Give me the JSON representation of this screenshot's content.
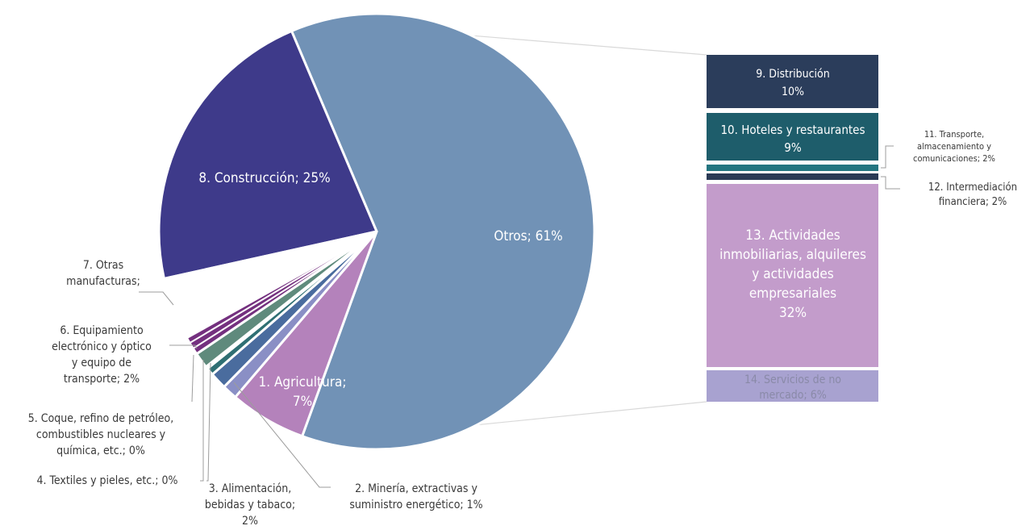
{
  "chart_data": {
    "type": "pie",
    "subtype": "pie-of-bar",
    "title": "",
    "main_slices": [
      {
        "key": "otros",
        "label_lines": [
          "Otros; 61%"
        ],
        "value": 61,
        "color": "#7192b6",
        "label_color": "#ffffff"
      },
      {
        "key": "agricultura",
        "label_lines": [
          "1. Agricultura;",
          "7%"
        ],
        "value": 7,
        "color": "#b482bb",
        "label_color": "#ffffff"
      },
      {
        "key": "mineria",
        "label_lines": [
          "2. Minería, extractivas y",
          "suministro energético; 1%"
        ],
        "value": 1,
        "color": "#8a8fc5",
        "label_color": "#3a3a3a"
      },
      {
        "key": "alimentacion",
        "label_lines": [
          "3. Alimentación,",
          "bebidas y tabaco;",
          "2%"
        ],
        "value": 2,
        "color": "#4a6c9e",
        "label_color": "#3a3a3a"
      },
      {
        "key": "textiles",
        "label_lines": [
          "4. Textiles y pieles, etc.; 0%"
        ],
        "value": 0,
        "color": "#2f6f73",
        "label_color": "#3a3a3a"
      },
      {
        "key": "coque",
        "label_lines": [
          "5. Coque, refino de petróleo,",
          "combustibles nucleares y",
          "química, etc.; 0%"
        ],
        "value": 0,
        "color": "#355e4e",
        "label_color": "#3a3a3a"
      },
      {
        "key": "equipamiento",
        "label_lines": [
          "6. Equipamiento",
          "electrónico y óptico",
          "y equipo de",
          "transporte; 2%"
        ],
        "value": 2,
        "color": "#5f8a7c",
        "label_color": "#3a3a3a"
      },
      {
        "key": "otras_manuf",
        "label_lines": [
          "7. Otras",
          "manufacturas;"
        ],
        "value": 2,
        "color": "#74307f",
        "label_color": "#3a3a3a"
      },
      {
        "key": "construccion",
        "label_lines": [
          "8. Construcción; 25%"
        ],
        "value": 25,
        "color": "#3e3a8a",
        "label_color": "#ffffff"
      }
    ],
    "bar_segments": [
      {
        "key": "distribucion",
        "label_lines": [
          "9. Distribución",
          "10%"
        ],
        "value": 10,
        "color": "#2b3d5b",
        "label_color": "#ffffff"
      },
      {
        "key": "hoteles",
        "label_lines": [
          "10. Hoteles y restaurantes",
          "9%"
        ],
        "value": 9,
        "color": "#1e5d6b",
        "label_color": "#ffffff"
      },
      {
        "key": "transporte",
        "label_lines": [
          "11. Transporte,",
          "almacenamiento y",
          "comunicaciones; 2%"
        ],
        "value": 2,
        "color": "#237580",
        "label_color": "#3a3a3a"
      },
      {
        "key": "intermediacion",
        "label_lines": [
          "12. Intermediación",
          "financiera; 2%"
        ],
        "value": 2,
        "color": "#2a3a55",
        "label_color": "#3a3a3a"
      },
      {
        "key": "inmobiliarias",
        "label_lines": [
          "13. Actividades",
          "inmobiliarias, alquileres",
          "y actividades",
          "empresariales",
          "32%"
        ],
        "value": 32,
        "color": "#c39ccb",
        "label_color": "#ffffff"
      },
      {
        "key": "servicios",
        "label_lines": [
          "14. Servicios de no",
          "mercado; 6%"
        ],
        "value": 6,
        "color": "#a8a2d0",
        "label_color": "#8a8aa8"
      }
    ]
  }
}
